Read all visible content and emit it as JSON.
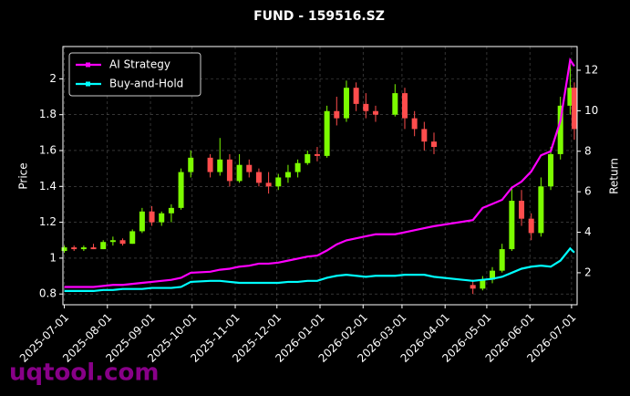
{
  "chart_data": {
    "type": "candlestick",
    "title": "FUND - 159516.SZ",
    "ylabel": "Price",
    "y2label": "Return",
    "watermark": "uqtool.com",
    "x": [
      "2025-07-01",
      "2025-07-08",
      "2025-07-15",
      "2025-07-22",
      "2025-07-29",
      "2025-08-05",
      "2025-08-12",
      "2025-08-19",
      "2025-08-26",
      "2025-09-02",
      "2025-09-09",
      "2025-09-16",
      "2025-09-23",
      "2025-09-30",
      "2025-10-14",
      "2025-10-21",
      "2025-10-28",
      "2025-11-04",
      "2025-11-11",
      "2025-11-18",
      "2025-11-25",
      "2025-12-02",
      "2025-12-09",
      "2025-12-16",
      "2025-12-23",
      "2025-12-30",
      "2026-01-06",
      "2026-01-13",
      "2026-01-20",
      "2026-01-27",
      "2026-02-03",
      "2026-02-10",
      "2026-02-24",
      "2026-03-03",
      "2026-03-10",
      "2026-03-17",
      "2026-03-24",
      "2026-04-21",
      "2026-04-28",
      "2026-05-05",
      "2026-05-12",
      "2026-05-19",
      "2026-05-26",
      "2026-06-02",
      "2026-06-09",
      "2026-06-16",
      "2026-06-23",
      "2026-06-30",
      "2026-07-03"
    ],
    "open": [
      1.04,
      1.06,
      1.05,
      1.06,
      1.05,
      1.09,
      1.1,
      1.08,
      1.15,
      1.26,
      1.2,
      1.25,
      1.28,
      1.48,
      1.56,
      1.48,
      1.55,
      1.43,
      1.52,
      1.48,
      1.42,
      1.4,
      1.45,
      1.48,
      1.53,
      1.58,
      1.57,
      1.82,
      1.78,
      1.95,
      1.86,
      1.82,
      1.8,
      1.92,
      1.78,
      1.72,
      1.65,
      0.85,
      0.83,
      0.88,
      0.93,
      1.05,
      1.32,
      1.22,
      1.14,
      1.4,
      1.58,
      1.85,
      1.95
    ],
    "high": [
      1.07,
      1.07,
      1.07,
      1.08,
      1.1,
      1.12,
      1.11,
      1.16,
      1.28,
      1.29,
      1.26,
      1.3,
      1.5,
      1.6,
      1.58,
      1.67,
      1.58,
      1.58,
      1.55,
      1.5,
      1.48,
      1.47,
      1.52,
      1.55,
      1.6,
      1.62,
      1.85,
      1.9,
      1.99,
      1.98,
      1.92,
      1.85,
      1.97,
      1.95,
      1.82,
      1.76,
      1.7,
      0.88,
      0.9,
      0.95,
      1.08,
      1.4,
      1.38,
      1.25,
      1.45,
      1.62,
      1.9,
      2.08,
      1.98
    ],
    "low": [
      1.03,
      1.04,
      1.04,
      1.05,
      1.05,
      1.07,
      1.07,
      1.08,
      1.14,
      1.18,
      1.18,
      1.2,
      1.27,
      1.45,
      1.45,
      1.46,
      1.4,
      1.42,
      1.45,
      1.4,
      1.36,
      1.38,
      1.42,
      1.45,
      1.52,
      1.54,
      1.56,
      1.74,
      1.76,
      1.82,
      1.78,
      1.76,
      1.79,
      1.72,
      1.68,
      1.6,
      1.58,
      0.8,
      0.82,
      0.86,
      0.92,
      1.04,
      1.18,
      1.1,
      1.12,
      1.38,
      1.55,
      1.8,
      1.66
    ],
    "close": [
      1.06,
      1.05,
      1.06,
      1.05,
      1.09,
      1.1,
      1.08,
      1.15,
      1.26,
      1.2,
      1.25,
      1.28,
      1.48,
      1.56,
      1.48,
      1.55,
      1.43,
      1.52,
      1.48,
      1.42,
      1.4,
      1.45,
      1.48,
      1.53,
      1.58,
      1.57,
      1.82,
      1.78,
      1.95,
      1.86,
      1.82,
      1.8,
      1.92,
      1.78,
      1.72,
      1.65,
      1.62,
      0.83,
      0.88,
      0.93,
      1.05,
      1.32,
      1.22,
      1.14,
      1.4,
      1.58,
      1.85,
      1.95,
      1.72
    ],
    "up_color": "#7cfc00",
    "down_color": "#ff4d4d",
    "series": [
      {
        "name": "AI Strategy",
        "color": "#ff00ff",
        "axis": "y2",
        "values": [
          1.3,
          1.3,
          1.3,
          1.3,
          1.35,
          1.4,
          1.4,
          1.45,
          1.5,
          1.55,
          1.6,
          1.65,
          1.75,
          2.0,
          2.05,
          2.15,
          2.2,
          2.3,
          2.35,
          2.45,
          2.45,
          2.5,
          2.6,
          2.7,
          2.8,
          2.85,
          3.1,
          3.4,
          3.6,
          3.7,
          3.8,
          3.9,
          3.9,
          4.0,
          4.1,
          4.2,
          4.3,
          4.6,
          5.2,
          5.4,
          5.6,
          6.2,
          6.5,
          7.0,
          7.8,
          8.0,
          9.5,
          12.5,
          12.2
        ]
      },
      {
        "name": "Buy-and-Hold",
        "color": "#00ffff",
        "axis": "y2",
        "values": [
          1.1,
          1.1,
          1.1,
          1.1,
          1.15,
          1.15,
          1.2,
          1.2,
          1.2,
          1.25,
          1.25,
          1.25,
          1.3,
          1.55,
          1.6,
          1.6,
          1.55,
          1.5,
          1.5,
          1.5,
          1.5,
          1.5,
          1.55,
          1.55,
          1.6,
          1.6,
          1.75,
          1.85,
          1.9,
          1.85,
          1.8,
          1.85,
          1.85,
          1.9,
          1.9,
          1.9,
          1.8,
          1.6,
          1.65,
          1.7,
          1.8,
          2.0,
          2.2,
          2.3,
          2.35,
          2.3,
          2.6,
          3.2,
          3.0
        ]
      }
    ],
    "xlim": [
      "2025-06-30",
      "2026-07-05"
    ],
    "xticks": [
      "2025-07-01",
      "2025-08-01",
      "2025-09-01",
      "2025-10-01",
      "2025-11-01",
      "2025-12-01",
      "2026-01-01",
      "2026-02-01",
      "2026-03-01",
      "2026-04-01",
      "2026-05-01",
      "2026-06-01",
      "2026-07-01"
    ],
    "ylim": [
      0.74,
      2.18
    ],
    "yticks": [
      0.8,
      1.0,
      1.2,
      1.4,
      1.6,
      1.8,
      2.0
    ],
    "y2lim": [
      0.42,
      13.17
    ],
    "y2ticks": [
      2,
      4,
      6,
      8,
      10,
      12
    ],
    "grid": true,
    "legend": "upper left"
  }
}
